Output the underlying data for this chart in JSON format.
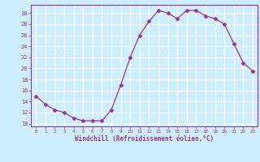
{
  "x": [
    0,
    1,
    2,
    3,
    4,
    5,
    6,
    7,
    8,
    9,
    10,
    11,
    12,
    13,
    14,
    15,
    16,
    17,
    18,
    19,
    20,
    21,
    22,
    23
  ],
  "y": [
    15,
    13.5,
    12.5,
    12,
    11,
    10.5,
    10.5,
    10.5,
    12.5,
    17,
    22,
    26,
    28.5,
    30.5,
    30,
    29,
    30.5,
    30.5,
    29.5,
    29,
    28,
    24.5,
    21,
    19.5
  ],
  "line_color": "#993399",
  "marker": "D",
  "marker_size": 2.5,
  "bg_color": "#cceeff",
  "grid_color": "#ffffff",
  "xlabel": "Windchill (Refroidissement éolien,°C)",
  "xlabel_color": "#993399",
  "tick_color": "#993399",
  "spine_color": "#993399",
  "xlim": [
    -0.5,
    23.5
  ],
  "ylim": [
    9.5,
    31.5
  ],
  "yticks": [
    10,
    12,
    14,
    16,
    18,
    20,
    22,
    24,
    26,
    28,
    30
  ],
  "xticks": [
    0,
    1,
    2,
    3,
    4,
    5,
    6,
    7,
    8,
    9,
    10,
    11,
    12,
    13,
    14,
    15,
    16,
    17,
    18,
    19,
    20,
    21,
    22,
    23
  ]
}
